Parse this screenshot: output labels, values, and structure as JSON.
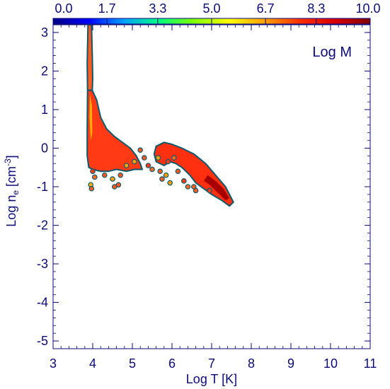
{
  "chart_data": {
    "type": "heatmap",
    "panel_label": "Log M",
    "xlabel": "Log T [K]",
    "ylabel_main": "Log n",
    "ylabel_sub": "e",
    "ylabel_unit": " [cm",
    "ylabel_sup": "-3",
    "ylabel_end": "]",
    "xlim": [
      3,
      11
    ],
    "ylim": [
      -5.2,
      3.2
    ],
    "x_ticks": [
      "3",
      "4",
      "5",
      "6",
      "7",
      "8",
      "9",
      "10",
      "11"
    ],
    "y_ticks": [
      "3",
      "2",
      "1",
      "0",
      "-1",
      "-2",
      "-3",
      "-4",
      "-5"
    ],
    "colorbar": {
      "range": [
        0.0,
        10.0
      ],
      "ticks": [
        "0.0",
        "1.7",
        "3.3",
        "5.0",
        "6.7",
        "8.3",
        "10.0"
      ],
      "colors": [
        "#00007f",
        "#0000ff",
        "#00a0ff",
        "#00ff7f",
        "#80ff00",
        "#ffff00",
        "#ffa000",
        "#ff3000",
        "#d80000",
        "#7f0000"
      ]
    },
    "regions": [
      {
        "name": "vertical spike",
        "fill": "#ff5a1e",
        "points": [
          [
            3.88,
            3.2
          ],
          [
            3.97,
            3.2
          ],
          [
            3.99,
            2.4
          ],
          [
            4.0,
            1.8
          ],
          [
            3.99,
            1.5
          ],
          [
            3.87,
            1.5
          ],
          [
            3.86,
            2.2
          ]
        ]
      },
      {
        "name": "main branch",
        "fill": "#ff3a14",
        "points": [
          [
            3.87,
            1.5
          ],
          [
            3.99,
            1.5
          ],
          [
            4.1,
            1.25
          ],
          [
            4.2,
            0.8
          ],
          [
            4.35,
            0.5
          ],
          [
            4.55,
            0.3
          ],
          [
            4.75,
            0.15
          ],
          [
            4.95,
            0.0
          ],
          [
            5.1,
            -0.2
          ],
          [
            5.2,
            -0.4
          ],
          [
            5.25,
            -0.55
          ],
          [
            5.05,
            -0.55
          ],
          [
            4.85,
            -0.6
          ],
          [
            4.6,
            -0.55
          ],
          [
            4.4,
            -0.6
          ],
          [
            4.2,
            -0.6
          ],
          [
            4.0,
            -0.55
          ],
          [
            3.9,
            -0.5
          ],
          [
            3.86,
            -0.2
          ],
          [
            3.86,
            0.5
          ]
        ]
      },
      {
        "name": "second lobe",
        "fill": "#ff3010",
        "points": [
          [
            5.6,
            0.05
          ],
          [
            5.8,
            0.15
          ],
          [
            6.0,
            0.1
          ],
          [
            6.25,
            0.0
          ],
          [
            6.55,
            -0.15
          ],
          [
            6.85,
            -0.4
          ],
          [
            7.1,
            -0.7
          ],
          [
            7.35,
            -1.0
          ],
          [
            7.55,
            -1.4
          ],
          [
            7.45,
            -1.5
          ],
          [
            7.25,
            -1.35
          ],
          [
            7.0,
            -1.2
          ],
          [
            6.8,
            -1.05
          ],
          [
            6.6,
            -0.9
          ],
          [
            6.45,
            -0.7
          ],
          [
            6.25,
            -0.5
          ],
          [
            6.1,
            -0.4
          ],
          [
            5.95,
            -0.35
          ],
          [
            5.8,
            -0.45
          ],
          [
            5.6,
            -0.35
          ],
          [
            5.55,
            -0.15
          ]
        ]
      },
      {
        "name": "dense ridge",
        "fill": "#a80000",
        "points": [
          [
            6.9,
            -0.7
          ],
          [
            7.1,
            -0.85
          ],
          [
            7.3,
            -1.05
          ],
          [
            7.45,
            -1.3
          ],
          [
            7.35,
            -1.35
          ],
          [
            7.15,
            -1.15
          ],
          [
            6.95,
            -0.95
          ],
          [
            6.8,
            -0.85
          ]
        ]
      },
      {
        "name": "inner core",
        "fill": "#ffb000",
        "points": [
          [
            3.93,
            1.4
          ],
          [
            3.98,
            1.1
          ],
          [
            3.99,
            0.4
          ],
          [
            3.95,
            0.2
          ],
          [
            3.92,
            0.8
          ]
        ]
      }
    ],
    "scatter": [
      [
        4.0,
        -0.6,
        "#ff3a14"
      ],
      [
        4.05,
        -0.75,
        "#ff6a20"
      ],
      [
        3.95,
        -0.95,
        "#ffb000"
      ],
      [
        3.97,
        -1.05,
        "#ff5a1e"
      ],
      [
        4.3,
        -0.7,
        "#ff5a1e"
      ],
      [
        4.5,
        -0.8,
        "#ffa000"
      ],
      [
        4.65,
        -0.95,
        "#ff5a1e"
      ],
      [
        4.55,
        -1.0,
        "#ff5a1e"
      ],
      [
        5.4,
        -0.45,
        "#ff3a14"
      ],
      [
        5.2,
        -0.05,
        "#ff5a1e"
      ],
      [
        5.05,
        -0.35,
        "#ffa000"
      ],
      [
        5.5,
        -0.55,
        "#ff6a20"
      ],
      [
        5.7,
        -0.6,
        "#ff5a1e"
      ],
      [
        5.85,
        -0.7,
        "#ffa000"
      ],
      [
        6.15,
        -0.6,
        "#ff5a1e"
      ],
      [
        6.3,
        -0.85,
        "#ff3a14"
      ],
      [
        6.55,
        -1.0,
        "#ff5a1e"
      ],
      [
        5.95,
        -0.9,
        "#ffa000"
      ],
      [
        5.75,
        -0.8,
        "#ff5a1e"
      ],
      [
        6.4,
        -1.0,
        "#ff6a20"
      ],
      [
        6.6,
        -1.1,
        "#ff5a1e"
      ],
      [
        6.95,
        -1.1,
        "#ff3a14"
      ],
      [
        5.3,
        -0.25,
        "#ff5a1e"
      ],
      [
        4.7,
        -0.7,
        "#ff5a1e"
      ],
      [
        5.9,
        -0.35,
        "#ff3a14"
      ],
      [
        6.05,
        -0.25,
        "#ff6a20"
      ],
      [
        5.65,
        -0.25,
        "#ffa000"
      ],
      [
        4.85,
        -0.45,
        "#ffa000"
      ]
    ]
  }
}
